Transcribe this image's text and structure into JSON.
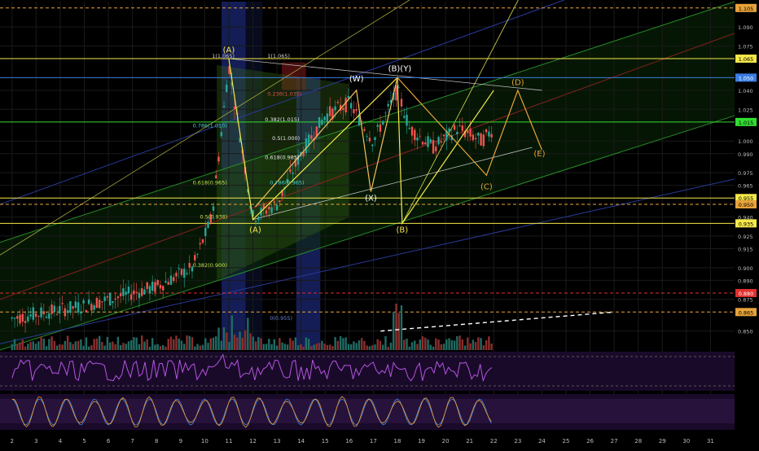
{
  "chart_data": {
    "type": "candlestick",
    "title": "",
    "price_axis": {
      "min": 0.835,
      "max": 1.11,
      "ticks": [
        1.09,
        1.075,
        1.04,
        1.025,
        1.0,
        0.99,
        0.975,
        0.965,
        0.94,
        0.925,
        0.915,
        0.9,
        0.89,
        0.875,
        0.85
      ],
      "tick_labels": [
        "1.090",
        "1.075",
        "1.040",
        "1.025",
        "1.000",
        "0.990",
        "0.975",
        "0.965",
        "0.940",
        "0.925",
        "0.915",
        "0.900",
        "0.890",
        "0.875",
        "0.850"
      ]
    },
    "price_markers": [
      {
        "value": 1.105,
        "label": "1.105",
        "color": "#e8a33a",
        "text_color": "#000"
      },
      {
        "value": 1.065,
        "label": "1.065",
        "color": "#f5e84a",
        "text_color": "#000"
      },
      {
        "value": 1.05,
        "label": "1.050",
        "color": "#3b7de0",
        "text_color": "#fff"
      },
      {
        "value": 1.015,
        "label": "1.015",
        "color": "#33dd33",
        "text_color": "#000"
      },
      {
        "value": 0.955,
        "label": "0.955",
        "color": "#f5e84a",
        "text_color": "#000"
      },
      {
        "value": 0.95,
        "label": "0.950",
        "color": "#e8a33a",
        "text_color": "#000"
      },
      {
        "value": 0.935,
        "label": "0.935",
        "color": "#f5e84a",
        "text_color": "#000"
      },
      {
        "value": 0.88,
        "label": "0.880",
        "color": "#e03030",
        "text_color": "#fff"
      },
      {
        "value": 0.865,
        "label": "0.865",
        "color": "#e8a33a",
        "text_color": "#000"
      }
    ],
    "time_axis": {
      "min": 1.5,
      "max": 32,
      "labels": [
        "2",
        "3",
        "4",
        "5",
        "6",
        "7",
        "8",
        "9",
        "10",
        "11",
        "12",
        "13",
        "14",
        "15",
        "16",
        "17",
        "18",
        "19",
        "20",
        "21",
        "22",
        "23",
        "24",
        "25",
        "26",
        "27",
        "28",
        "29",
        "30",
        "31"
      ],
      "values": [
        2,
        3,
        4,
        5,
        6,
        7,
        8,
        9,
        10,
        11,
        12,
        13,
        14,
        15,
        16,
        17,
        18,
        19,
        20,
        21,
        22,
        23,
        24,
        25,
        26,
        27,
        28,
        29,
        30,
        31
      ]
    },
    "wave_labels": [
      {
        "text": "(A)",
        "x": 11,
        "y": 1.07,
        "color": "#f5e84a"
      },
      {
        "text": "(A)",
        "x": 12.1,
        "y": 0.928,
        "color": "#f5e84a"
      },
      {
        "text": "(W)",
        "x": 16.3,
        "y": 1.047,
        "color": "#ffffff"
      },
      {
        "text": "(X)",
        "x": 16.9,
        "y": 0.953,
        "color": "#ffffff"
      },
      {
        "text": "(B)(Y)",
        "x": 18.1,
        "y": 1.055,
        "color": "#ffffff"
      },
      {
        "text": "(B)",
        "x": 18.2,
        "y": 0.928,
        "color": "#f5e84a"
      },
      {
        "text": "(C)",
        "x": 21.7,
        "y": 0.962,
        "color": "#e8a33a"
      },
      {
        "text": "(D)",
        "x": 23,
        "y": 1.044,
        "color": "#e8a33a"
      },
      {
        "text": "(E)",
        "x": 23.9,
        "y": 0.988,
        "color": "#e8a33a"
      }
    ],
    "fib_labels": [
      {
        "text": "1(1.065)",
        "x": 10.3,
        "y": 1.065,
        "color": "#cccccc"
      },
      {
        "text": "1(1.065)",
        "x": 12.6,
        "y": 1.065,
        "color": "#cccccc"
      },
      {
        "text": "0.236(1.035)",
        "x": 12.6,
        "y": 1.035,
        "color": "#e05050"
      },
      {
        "text": "0.786(1.010)",
        "x": 9.5,
        "y": 1.01,
        "color": "#4ad0d0"
      },
      {
        "text": "0.382(1.015)",
        "x": 12.5,
        "y": 1.015,
        "color": "#e8e8e8"
      },
      {
        "text": "0.5(1.000)",
        "x": 12.8,
        "y": 1.0,
        "color": "#e8e8e8"
      },
      {
        "text": "0.618(0.985)",
        "x": 12.5,
        "y": 0.985,
        "color": "#e8e8e8"
      },
      {
        "text": "0.618(0.965)",
        "x": 9.5,
        "y": 0.965,
        "color": "#c8e050"
      },
      {
        "text": "0.786(0.965)",
        "x": 12.7,
        "y": 0.965,
        "color": "#4ad0d0"
      },
      {
        "text": "0.5(0.938)",
        "x": 9.8,
        "y": 0.938,
        "color": "#c8e050"
      },
      {
        "text": "0.382(0.900)",
        "x": 9.5,
        "y": 0.9,
        "color": "#c8e050"
      },
      {
        "text": "0(0.955)",
        "x": 12.7,
        "y": 0.858,
        "color": "#6a80d0"
      }
    ],
    "wave_paths": {
      "primary": {
        "color": "#f5e84a",
        "points": [
          [
            11,
            1.065
          ],
          [
            12,
            0.938
          ],
          [
            18,
            1.05
          ],
          [
            18.2,
            0.935
          ],
          [
            22,
            1.04
          ]
        ]
      },
      "wxy": {
        "color": "#f5c060",
        "points": [
          [
            12.1,
            0.948
          ],
          [
            16.3,
            1.04
          ],
          [
            16.9,
            0.96
          ],
          [
            18,
            1.05
          ]
        ]
      },
      "triangle": {
        "color": "#e8a33a",
        "points": [
          [
            18,
            1.05
          ],
          [
            21.7,
            0.973
          ],
          [
            23,
            1.04
          ],
          [
            24,
            0.993
          ]
        ]
      }
    },
    "oscillators": [
      {
        "name": "rsi",
        "levels": [
          "80.00",
          "40.00"
        ]
      },
      {
        "name": "stoch",
        "levels": [
          "100.00",
          "50.00",
          "20.00"
        ]
      }
    ]
  }
}
